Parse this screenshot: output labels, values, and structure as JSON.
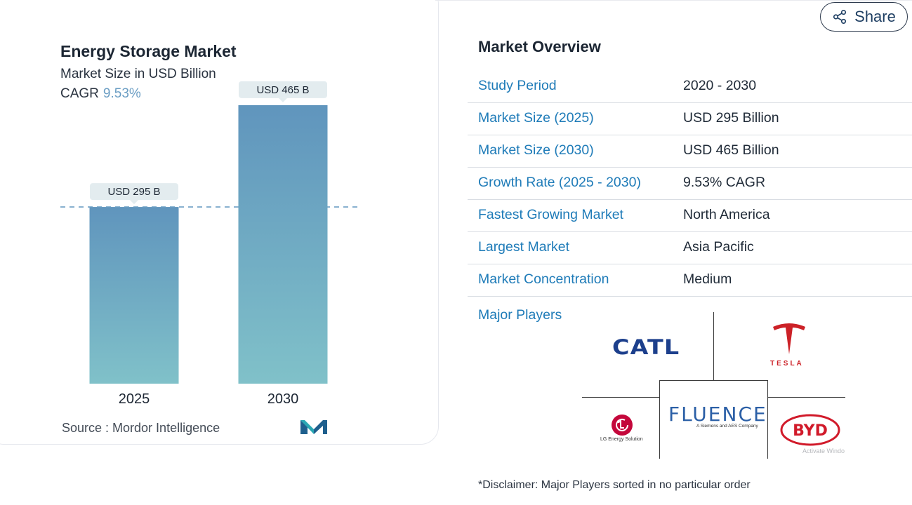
{
  "chart_data": {
    "type": "bar",
    "title": "Energy Storage Market",
    "subtitle": "Market Size in USD Billion",
    "cagr_label": "CAGR",
    "cagr_value": "9.53%",
    "categories": [
      "2025",
      "2030"
    ],
    "values": [
      295,
      465
    ],
    "data_labels": [
      "USD 295 B",
      "USD 465 B"
    ],
    "unit": "USD Billion",
    "ylim": [
      0,
      500
    ],
    "grid": false,
    "reference_line": "dashed line at 2025 value",
    "colors": {
      "bar_top": "#6095bd",
      "bar_bottom": "#80c1c9",
      "label_bg": "#e3ecef"
    }
  },
  "source": "Source :  Mordor Intelligence",
  "share": {
    "label": "Share"
  },
  "overview": {
    "title": "Market Overview",
    "rows": [
      {
        "key": "Study Period",
        "value": "2020 - 2030"
      },
      {
        "key": "Market Size (2025)",
        "value": "USD 295 Billion"
      },
      {
        "key": "Market Size (2030)",
        "value": "USD 465 Billion"
      },
      {
        "key": "Growth Rate (2025 - 2030)",
        "value": "9.53% CAGR"
      },
      {
        "key": "Fastest Growing Market",
        "value": "North America"
      },
      {
        "key": "Largest Market",
        "value": "Asia Pacific"
      },
      {
        "key": "Market Concentration",
        "value": "Medium"
      }
    ]
  },
  "players": {
    "label": "Major Players",
    "catl": "CATL",
    "tesla": "TESLA",
    "fluence": "FLUENCE",
    "fluence_sub": "A Siemens and AES Company",
    "lg": "LG Energy Solution",
    "byd": "BYD"
  },
  "watermark": "Activate Windo",
  "disclaimer": "*Disclaimer: Major Players sorted in no particular order",
  "colors": {
    "link_blue": "#1e7bb8",
    "cagr_blue": "#6a9dc3"
  }
}
